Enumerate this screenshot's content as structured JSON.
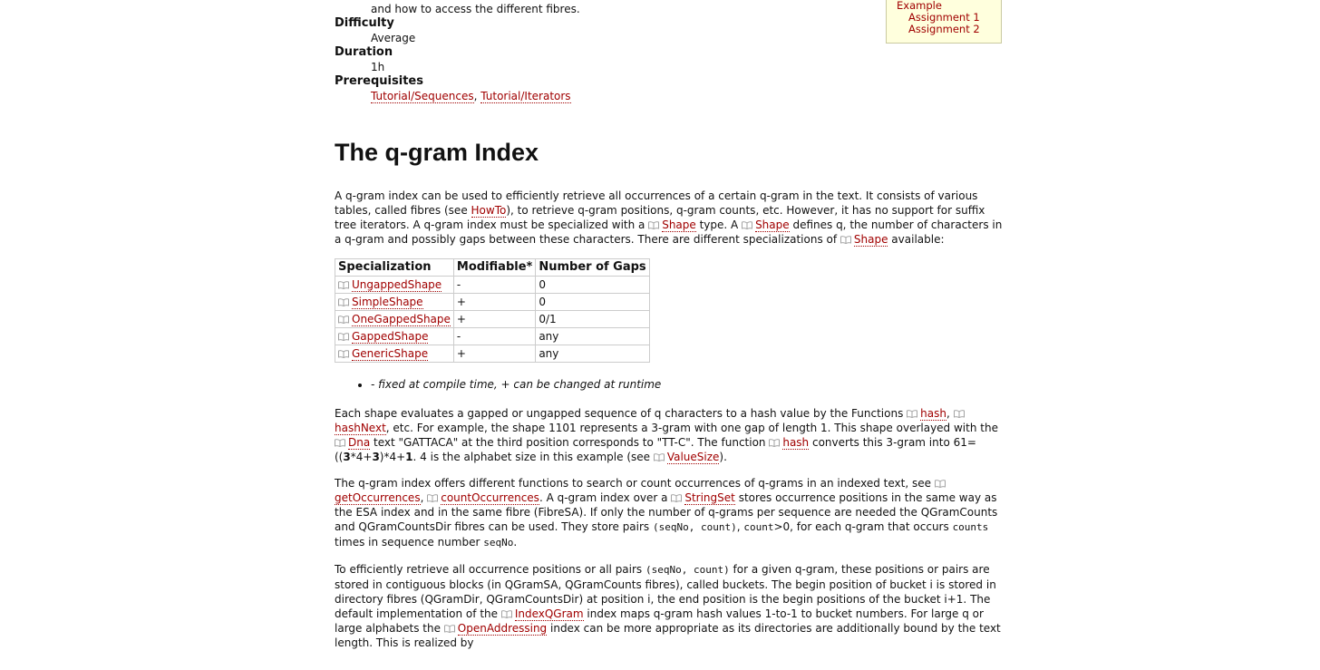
{
  "toc": {
    "items": [
      {
        "text": "The q-gram Index",
        "level": 0
      },
      {
        "text": "Example",
        "level": 0
      },
      {
        "text": "Assignment 1",
        "level": 1
      },
      {
        "text": "Assignment 2",
        "level": 1
      }
    ]
  },
  "intro_fragment": "and how to access the different fibres.",
  "meta": [
    {
      "term": "Difficulty",
      "desc": [
        {
          "t": "Average"
        }
      ]
    },
    {
      "term": "Duration",
      "desc": [
        {
          "t": "1h"
        }
      ]
    },
    {
      "term": "Prerequisites",
      "desc": [
        {
          "a": "Tutorial/Sequences"
        },
        {
          "t": ", "
        },
        {
          "a": "Tutorial/Iterators"
        }
      ]
    }
  ],
  "heading": "The q-gram Index",
  "paragraph_1": [
    {
      "t": "A q-gram index can be used to efficiently retrieve all occurrences of a certain q-gram in the text. It consists of various tables, called fibres (see "
    },
    {
      "a": "HowTo"
    },
    {
      "t": "), to retrieve q-gram positions, q-gram counts, etc. However, it has no support for suffix tree iterators. A q-gram index must be specialized with a "
    },
    {
      "ia": "Shape"
    },
    {
      "t": " type. A "
    },
    {
      "ia": "Shape"
    },
    {
      "t": " defines q, the number of characters in a q-gram and possibly gaps between these characters. There are different specializations of "
    },
    {
      "ia": "Shape"
    },
    {
      "t": " available:"
    }
  ],
  "table": {
    "headers": [
      "Specialization",
      "Modifiable*",
      "Number of Gaps"
    ],
    "rows": [
      [
        "UngappedShape",
        "-",
        "0"
      ],
      [
        "SimpleShape",
        "+",
        "0"
      ],
      [
        "OneGappedShape",
        "+",
        "0/1"
      ],
      [
        "GappedShape",
        "-",
        "any"
      ],
      [
        "GenericShape",
        "+",
        "any"
      ]
    ]
  },
  "note": "- fixed at compile time, + can be changed at runtime",
  "paragraphs": [
    [
      {
        "t": "Each shape evaluates a gapped or ungapped sequence of q characters to a hash value by the Functions "
      },
      {
        "ia": "hash"
      },
      {
        "t": ", "
      },
      {
        "ia": "hashNext"
      },
      {
        "t": ", etc. For example, the shape 1101 represents a 3-gram with one gap of length 1. This shape overlayed with the "
      },
      {
        "ia": "Dna"
      },
      {
        "t": " text \"GATTACA\" at the third position corresponds to \"TT-C\". The function "
      },
      {
        "ia": "hash"
      },
      {
        "t": " converts this 3-gram into 61=(("
      },
      {
        "b": "3"
      },
      {
        "t": "*4+"
      },
      {
        "b": "3"
      },
      {
        "t": ")*4+"
      },
      {
        "b": "1"
      },
      {
        "t": ". 4 is the alphabet size in this example (see "
      },
      {
        "ia": "ValueSize"
      },
      {
        "t": ")."
      }
    ],
    [
      {
        "t": "The q-gram index offers different functions to search or count occurrences of q-grams in an indexed text, see "
      },
      {
        "ia": "getOccurrences"
      },
      {
        "t": ", "
      },
      {
        "ia": "countOccurrences"
      },
      {
        "t": ". A q-gram index over a "
      },
      {
        "ia": "StringSet"
      },
      {
        "t": " stores occurrence positions in the same way as the ESA index and in the same fibre (FibreSA). If only the number of q-grams per sequence are needed the QGramCounts and QGramCountsDir fibres can be used. They store pairs "
      },
      {
        "c": "(seqNo, count)"
      },
      {
        "t": ", "
      },
      {
        "c": "count"
      },
      {
        "t": ">0, for each q-gram that occurs "
      },
      {
        "c": "counts"
      },
      {
        "t": " times in sequence number "
      },
      {
        "c": "seqNo"
      },
      {
        "t": "."
      }
    ],
    [
      {
        "t": "To efficiently retrieve all occurrence positions or all pairs "
      },
      {
        "c": "(seqNo, count)"
      },
      {
        "t": " for a given q-gram, these positions or pairs are stored in contiguous blocks (in QGramSA, QGramCounts fibres), called buckets. The begin position of bucket i is stored in directory fibres (QGramDir, QGramCountsDir) at position i, the end position is the begin positions of the bucket i+1. The default implementation of the "
      },
      {
        "ia": "IndexQGram"
      },
      {
        "t": " index maps q-gram hash values 1-to-1 to bucket numbers. For large q or large alphabets the "
      },
      {
        "ia": "OpenAddressing"
      },
      {
        "t": " index can be more appropriate as its directories are additionally bound by the text length. This is realized by"
      }
    ]
  ]
}
